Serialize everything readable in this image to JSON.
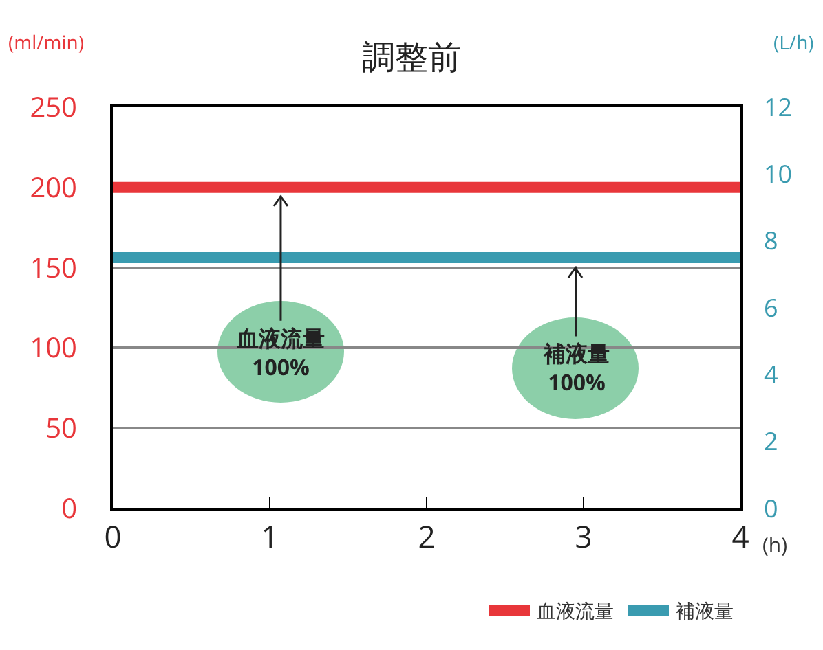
{
  "chart_data": {
    "type": "line",
    "title": "調整前",
    "xlabel": "(h)",
    "ylabel": "(ml/min)",
    "y2label": "(L/h)",
    "x": [
      0,
      4
    ],
    "series": [
      {
        "name": "血液流量",
        "color": "#e8363a",
        "values": [
          200,
          200
        ]
      },
      {
        "name": "補液量",
        "color": "#3a9bb0",
        "values": [
          7.5,
          7.5
        ],
        "axis": "y2"
      }
    ],
    "xlim": [
      0,
      4
    ],
    "xticks": [
      0,
      1,
      2,
      3,
      4
    ],
    "ylim": [
      0,
      250
    ],
    "yticks": [
      0,
      50,
      100,
      150,
      200,
      250
    ],
    "y2lim": [
      0,
      12
    ],
    "y2ticks": [
      0,
      2,
      4,
      6,
      8,
      10,
      12
    ],
    "grid": "y",
    "legend": "bottom right",
    "marker": "none",
    "line_style": "solid",
    "annotations": [
      {
        "text": "血液流量\n100%",
        "x": 1.07,
        "y": 200
      },
      {
        "text": "補液量\n100%",
        "x": 2.95,
        "y": 156
      }
    ]
  }
}
